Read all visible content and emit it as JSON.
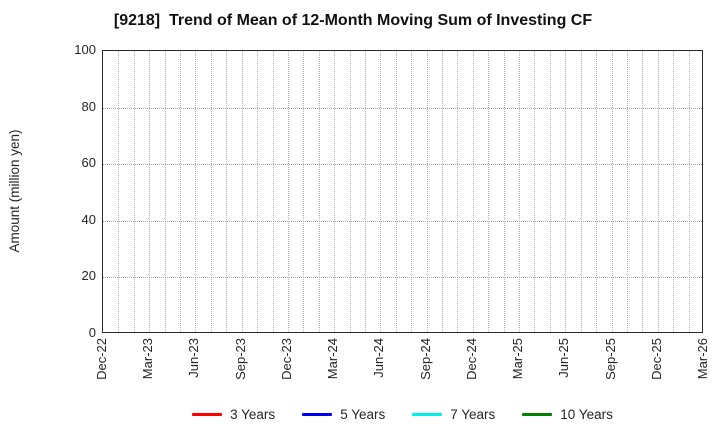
{
  "figure": {
    "title": "[9218]  Trend of Mean of 12-Month Moving Sum of Investing CF",
    "ylabel": "Amount (million yen)"
  },
  "chart_data": {
    "type": "line",
    "title": "[9218]  Trend of Mean of 12-Month Moving Sum of Investing CF",
    "xlabel": "",
    "ylabel": "Amount (million yen)",
    "ylim": [
      0,
      100
    ],
    "yticks": [
      0,
      20,
      40,
      60,
      80,
      100
    ],
    "x_tick_labels": [
      "Dec-22",
      "Mar-23",
      "Jun-23",
      "Sep-23",
      "Dec-23",
      "Mar-24",
      "Jun-24",
      "Sep-24",
      "Dec-24",
      "Mar-25",
      "Jun-25",
      "Sep-25",
      "Dec-25",
      "Mar-26"
    ],
    "months_per_tick": 3,
    "total_month_slots": 39,
    "grid": true,
    "grid_style": "dotted",
    "legend_position": "bottom-center",
    "series": [
      {
        "name": "3 Years",
        "color": "#ff0000",
        "values": []
      },
      {
        "name": "5 Years",
        "color": "#0000ee",
        "values": []
      },
      {
        "name": "7 Years",
        "color": "#00eeee",
        "values": []
      },
      {
        "name": "10 Years",
        "color": "#008000",
        "values": []
      }
    ]
  }
}
